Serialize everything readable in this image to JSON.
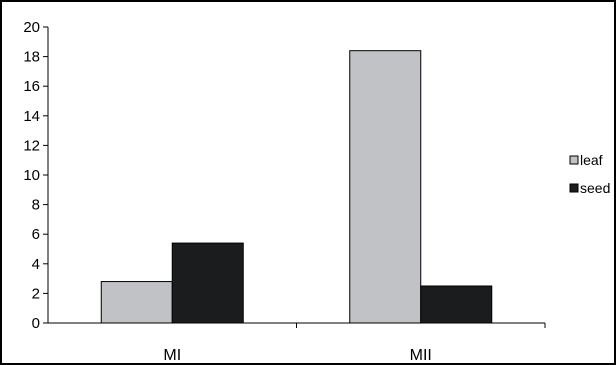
{
  "chart_data": {
    "type": "bar",
    "categories": [
      "MI",
      "MII"
    ],
    "series": [
      {
        "name": "leaf",
        "values": [
          2.8,
          18.4
        ],
        "color": "#c0c2c6"
      },
      {
        "name": "seed",
        "values": [
          5.4,
          2.5
        ],
        "color": "#1b1c1e"
      }
    ],
    "ylim": [
      0,
      20
    ],
    "yticks": [
      "0",
      "2",
      "4",
      "6",
      "8",
      "10",
      "12",
      "14",
      "16",
      "18",
      "20"
    ],
    "legend_labels": [
      "leaf",
      "seed"
    ],
    "legend_position": "right",
    "grid": false,
    "title": "",
    "xlabel": "",
    "ylabel": ""
  }
}
